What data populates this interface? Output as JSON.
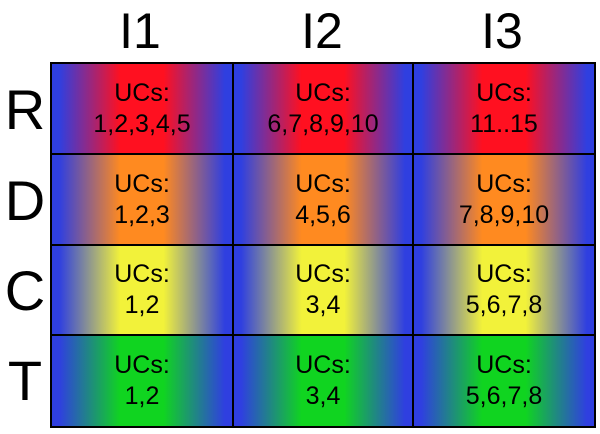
{
  "columns": [
    "I1",
    "I2",
    "I3"
  ],
  "rows": [
    {
      "label": "R",
      "color": "#ff1020",
      "cells": [
        {
          "title": "UCs:",
          "value": "1,2,3,4,5"
        },
        {
          "title": "UCs:",
          "value": "6,7,8,9,10"
        },
        {
          "title": "UCs:",
          "value": "11..15"
        }
      ]
    },
    {
      "label": "D",
      "color": "#ff8a20",
      "cells": [
        {
          "title": "UCs:",
          "value": "1,2,3"
        },
        {
          "title": "UCs:",
          "value": "4,5,6"
        },
        {
          "title": "UCs:",
          "value": "7,8,9,10"
        }
      ]
    },
    {
      "label": "C",
      "color": "#f2f23a",
      "cells": [
        {
          "title": "UCs:",
          "value": "1,2"
        },
        {
          "title": "UCs:",
          "value": "3,4"
        },
        {
          "title": "UCs:",
          "value": "5,6,7,8"
        }
      ]
    },
    {
      "label": "T",
      "color": "#10d420",
      "cells": [
        {
          "title": "UCs:",
          "value": "1,2"
        },
        {
          "title": "UCs:",
          "value": "3,4"
        },
        {
          "title": "UCs:",
          "value": "5,6,7,8"
        }
      ]
    }
  ],
  "edge_color": "#2f3fe0"
}
